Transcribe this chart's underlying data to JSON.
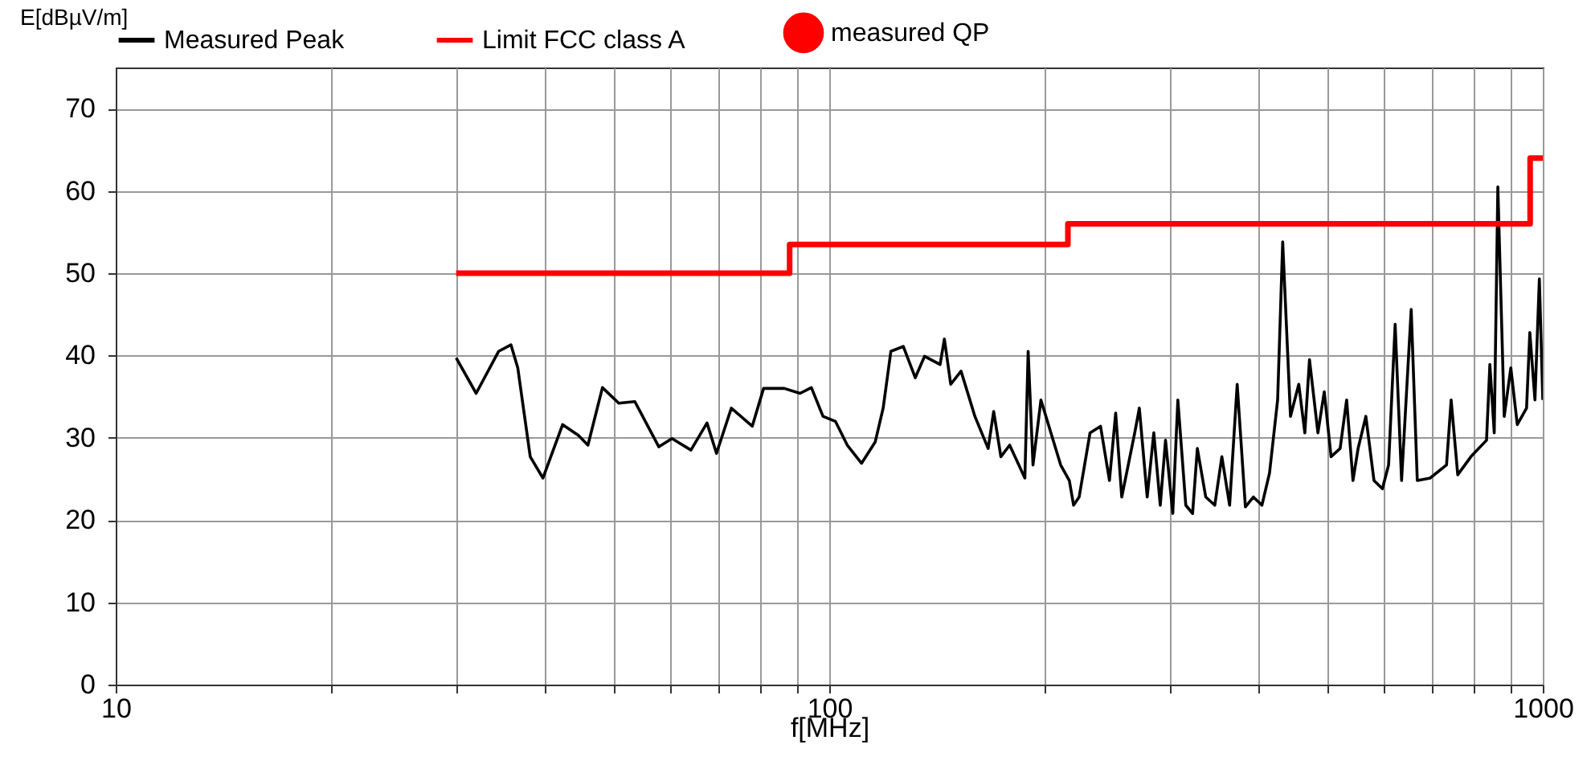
{
  "chart_data": {
    "type": "line",
    "xlabel": "f[MHz]",
    "ylabel": "E[dBµV/m]",
    "log": "x",
    "grid": true,
    "legend": "top",
    "xlim": [
      10,
      1000
    ],
    "ylim": [
      0,
      75
    ],
    "xticks": [
      10,
      {
        "value": 20,
        "label": null
      },
      {
        "value": 30,
        "label": null
      },
      {
        "value": 40,
        "label": null
      },
      {
        "value": 50,
        "label": null
      },
      {
        "value": 60,
        "label": null
      },
      {
        "value": 70,
        "label": null
      },
      {
        "value": 80,
        "label": null
      },
      {
        "value": 90,
        "label": null
      },
      100,
      {
        "value": 200,
        "label": null
      },
      {
        "value": 300,
        "label": null
      },
      {
        "value": 400,
        "label": null
      },
      {
        "value": 500,
        "label": null
      },
      {
        "value": 600,
        "label": null
      },
      {
        "value": 700,
        "label": null
      },
      {
        "value": 800,
        "label": null
      },
      {
        "value": 900,
        "label": null
      },
      1000
    ],
    "yticks": [
      0,
      10,
      20,
      30,
      40,
      50,
      60,
      70
    ],
    "series": [
      {
        "name": "Measured Peak",
        "color": "#000000",
        "x": [
          30.0,
          32.0,
          34.4,
          35.8,
          36.6,
          38.1,
          39.7,
          42.3,
          44.5,
          45.9,
          48.1,
          50.7,
          53.4,
          57.7,
          60.2,
          64.0,
          67.4,
          69.5,
          72.9,
          78.0,
          80.9,
          86.5,
          91.0,
          94.4,
          98.0,
          102,
          106,
          111,
          116,
          119,
          122,
          127,
          132,
          136,
          143,
          145,
          148,
          153,
          160,
          167,
          170,
          174,
          179,
          188,
          190,
          193,
          198,
          211,
          217,
          220,
          224,
          232,
          240,
          247,
          252,
          257,
          268,
          272,
          279,
          285,
          291,
          296,
          303,
          308,
          316,
          323,
          328,
          337,
          347,
          355,
          364,
          373,
          383,
          393,
          404,
          414,
          425,
          432,
          443,
          455,
          464,
          471,
          484,
          494,
          505,
          520,
          531,
          542,
          551,
          565,
          580,
          596,
          608,
          621,
          634,
          654,
          667,
          695,
          733,
          744,
          760,
          793,
          834,
          843,
          855,
          865,
          883,
          902,
          921,
          949,
          959,
          975,
          989,
          1000
        ],
        "values": [
          39.7,
          35.4,
          40.5,
          41.3,
          38.5,
          27.7,
          25.1,
          31.6,
          30.3,
          29.1,
          36.1,
          34.2,
          34.4,
          28.9,
          29.9,
          28.5,
          31.8,
          28.1,
          33.6,
          31.4,
          36.0,
          36.0,
          35.4,
          36.1,
          32.6,
          32.0,
          29.1,
          26.9,
          29.5,
          33.6,
          40.5,
          41.1,
          37.3,
          39.9,
          38.9,
          42.0,
          36.5,
          38.1,
          32.6,
          28.7,
          33.2,
          27.7,
          29.1,
          25.1,
          40.5,
          26.7,
          34.6,
          26.7,
          24.8,
          21.8,
          22.8,
          30.6,
          31.4,
          24.8,
          33.0,
          22.8,
          30.6,
          33.6,
          22.8,
          30.6,
          21.8,
          29.7,
          20.8,
          34.6,
          21.8,
          20.8,
          28.7,
          22.8,
          21.8,
          27.7,
          21.8,
          36.5,
          21.6,
          22.8,
          21.8,
          25.7,
          34.6,
          53.8,
          32.6,
          36.5,
          30.6,
          39.5,
          30.6,
          35.6,
          27.7,
          28.7,
          34.6,
          24.8,
          28.7,
          32.6,
          24.8,
          23.8,
          26.7,
          43.8,
          24.8,
          45.6,
          24.8,
          25.1,
          26.7,
          34.6,
          25.5,
          27.7,
          29.7,
          38.9,
          30.6,
          60.5,
          32.6,
          38.5,
          31.6,
          33.6,
          42.8,
          34.6,
          49.3,
          34.6
        ]
      },
      {
        "name": "Limit  FCC class A",
        "type": "step",
        "color": "#ff0000",
        "x": [
          30,
          88,
          216,
          960,
          1000
        ],
        "values": [
          50,
          53.5,
          56,
          64,
          64
        ]
      },
      {
        "name": "measured QP",
        "type": "scatter",
        "color": "#ff0000"
      }
    ]
  }
}
